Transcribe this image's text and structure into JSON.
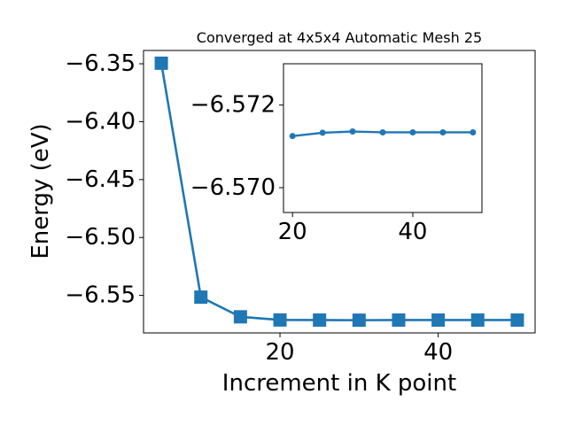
{
  "chart_data": [
    {
      "type": "line",
      "title": "Converged at 4x5x4 Automatic Mesh 25",
      "xlabel": "Increment in K point",
      "ylabel": "Energy (eV)",
      "x": [
        5,
        10,
        15,
        20,
        25,
        30,
        35,
        40,
        45,
        50
      ],
      "series": [
        {
          "values": [
            -6.3495,
            -6.5515,
            -6.5685,
            -6.5712,
            -6.5713,
            -6.5714,
            -6.5713,
            -6.5713,
            -6.5713,
            -6.5713
          ]
        }
      ],
      "xlim": [
        2.75,
        52.25
      ],
      "ylim": [
        -6.5824,
        -6.3385
      ],
      "xticks": [
        20,
        40
      ],
      "yticks": [
        -6.35,
        -6.4,
        -6.45,
        -6.5,
        -6.55
      ],
      "ytick_labels": [
        "−6.35",
        "−6.40",
        "−6.45",
        "−6.50",
        "−6.55"
      ],
      "marker": "square",
      "color": "#1f77b4",
      "grid": false
    },
    {
      "type": "line",
      "title": "",
      "xlabel": "",
      "ylabel": "",
      "x": [
        20,
        25,
        30,
        35,
        40,
        45,
        50
      ],
      "series": [
        {
          "values": [
            -6.57125,
            -6.57133,
            -6.57136,
            -6.57134,
            -6.57134,
            -6.57134,
            -6.57134
          ]
        }
      ],
      "xlim": [
        18.5,
        51.5
      ],
      "ylim": [
        -6.5694,
        -6.573
      ],
      "xticks": [
        20,
        40
      ],
      "yticks": [
        -6.572,
        -6.57
      ],
      "ytick_labels": [
        "−6.572",
        "−6.570"
      ],
      "marker": "circle",
      "color": "#1f77b4",
      "grid": false
    }
  ]
}
